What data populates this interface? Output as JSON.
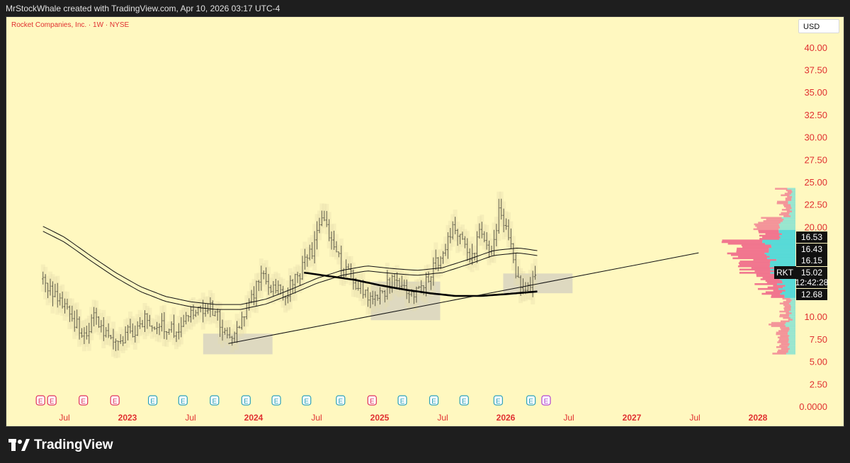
{
  "header": {
    "attribution": "MrStockWhale created with TradingView.com, Apr 10, 2026 03:17 UTC-4"
  },
  "chart_title": "Rocket Companies, Inc. · 1W · NYSE",
  "currency_label": "USD",
  "brand": {
    "name": "TradingView"
  },
  "colors": {
    "background": "#fff8c0",
    "axis_text": "#e03030",
    "earnings_red": "#e0305a",
    "earnings_blue": "#2aa0b8",
    "volume_profile_pink": "#f0708c",
    "volume_profile_cyan": "#50d8d8",
    "zone_box": "#d8d4c0"
  },
  "chart_data": {
    "type": "line",
    "symbol": "RKT",
    "interval": "1W",
    "exchange": "NYSE",
    "ylim": [
      0,
      42
    ],
    "y_ticks": [
      "0.0000",
      "2.50",
      "5.00",
      "7.50",
      "10.00",
      "12.50",
      "15.00",
      "17.50",
      "20.00",
      "22.50",
      "25.00",
      "27.50",
      "30.00",
      "32.50",
      "35.00",
      "37.50",
      "40.00"
    ],
    "x_tick_labels": [
      "Jul",
      "2023",
      "Jul",
      "2024",
      "Jul",
      "2025",
      "Jul",
      "2026",
      "Jul",
      "2027",
      "Jul",
      "2028"
    ],
    "x_tick_years": [
      "2023",
      "2024",
      "2025",
      "2026",
      "2027",
      "2028"
    ],
    "price_labels": [
      {
        "label": "16.53",
        "value": 16.53,
        "style": "black"
      },
      {
        "label": "16.43",
        "value": 16.43,
        "style": "black"
      },
      {
        "label": "16.15",
        "value": 16.15,
        "style": "black"
      },
      {
        "label": "RKT",
        "value": 15.02,
        "style": "black"
      },
      {
        "label": "15.02",
        "value": 15.02,
        "style": "black"
      },
      {
        "label": "12:42:28",
        "value": 14.0,
        "style": "black"
      },
      {
        "label": "12.68",
        "value": 12.68,
        "style": "black"
      }
    ],
    "price_series": {
      "name": "RKT",
      "x": [
        2022.33,
        2022.45,
        2022.55,
        2022.65,
        2022.75,
        2022.85,
        2022.95,
        2023.05,
        2023.15,
        2023.25,
        2023.35,
        2023.45,
        2023.55,
        2023.65,
        2023.75,
        2023.85,
        2023.95,
        2024.05,
        2024.15,
        2024.25,
        2024.35,
        2024.45,
        2024.55,
        2024.62,
        2024.7,
        2024.8,
        2024.9,
        2025.0,
        2025.1,
        2025.2,
        2025.3,
        2025.4,
        2025.5,
        2025.58,
        2025.65,
        2025.72,
        2025.8,
        2025.88,
        2025.95,
        2026.02,
        2026.1,
        2026.18,
        2026.25
      ],
      "close": [
        14.2,
        12.1,
        9.8,
        8.1,
        10.2,
        7.2,
        7.6,
        8.5,
        9.8,
        9.2,
        8.4,
        9.6,
        10.2,
        11.5,
        9.0,
        7.4,
        11.0,
        14.2,
        13.5,
        12.4,
        14.5,
        17.0,
        20.5,
        19.0,
        15.4,
        14.0,
        12.4,
        12.2,
        14.2,
        13.1,
        12.5,
        14.5,
        17.5,
        19.8,
        18.2,
        16.3,
        19.5,
        16.0,
        22.6,
        18.8,
        14.0,
        13.3,
        14.2
      ]
    },
    "ma_slow": {
      "x": [
        2024.4,
        2024.6,
        2024.8,
        2025.0,
        2025.2,
        2025.4,
        2025.6,
        2025.8,
        2026.0,
        2026.25
      ],
      "values": [
        14.9,
        14.5,
        14.1,
        13.5,
        13.0,
        12.6,
        12.3,
        12.3,
        12.5,
        12.8
      ]
    },
    "ma_band": {
      "x": [
        2022.33,
        2022.5,
        2022.7,
        2022.9,
        2023.1,
        2023.3,
        2023.5,
        2023.7,
        2023.9,
        2024.1,
        2024.3,
        2024.5,
        2024.7,
        2024.9,
        2025.1,
        2025.3,
        2025.5,
        2025.7,
        2025.9,
        2026.1,
        2026.25
      ],
      "values": [
        19.7,
        18.5,
        16.5,
        14.6,
        13.0,
        11.9,
        11.3,
        11.0,
        11.0,
        11.6,
        12.7,
        13.9,
        14.8,
        15.3,
        15.0,
        14.8,
        15.1,
        16.0,
        17.0,
        17.3,
        17.0
      ]
    },
    "trendline": {
      "x": [
        2023.8,
        2027.53
      ],
      "values": [
        7.0,
        17.1
      ]
    },
    "zones": [
      {
        "x": [
          2023.6,
          2024.15
        ],
        "y": [
          5.8,
          8.1
        ]
      },
      {
        "x": [
          2024.93,
          2025.48
        ],
        "y": [
          9.6,
          13.9
        ]
      },
      {
        "x": [
          2025.98,
          2026.53
        ],
        "y": [
          12.6,
          14.8
        ]
      }
    ],
    "earnings_markers": [
      {
        "x": 2022.31,
        "color": "red"
      },
      {
        "x": 2022.4,
        "color": "red"
      },
      {
        "x": 2022.65,
        "color": "red"
      },
      {
        "x": 2022.9,
        "color": "red"
      },
      {
        "x": 2023.2,
        "color": "blue"
      },
      {
        "x": 2023.44,
        "color": "blue"
      },
      {
        "x": 2023.69,
        "color": "blue"
      },
      {
        "x": 2023.94,
        "color": "blue"
      },
      {
        "x": 2024.18,
        "color": "blue"
      },
      {
        "x": 2024.42,
        "color": "blue"
      },
      {
        "x": 2024.69,
        "color": "blue"
      },
      {
        "x": 2024.94,
        "color": "red"
      },
      {
        "x": 2025.18,
        "color": "blue"
      },
      {
        "x": 2025.43,
        "color": "blue"
      },
      {
        "x": 2025.67,
        "color": "blue"
      },
      {
        "x": 2025.94,
        "color": "blue"
      },
      {
        "x": 2026.2,
        "color": "blue"
      },
      {
        "x": 2026.32,
        "color": "purple"
      }
    ],
    "grid": false,
    "legend": "none"
  }
}
